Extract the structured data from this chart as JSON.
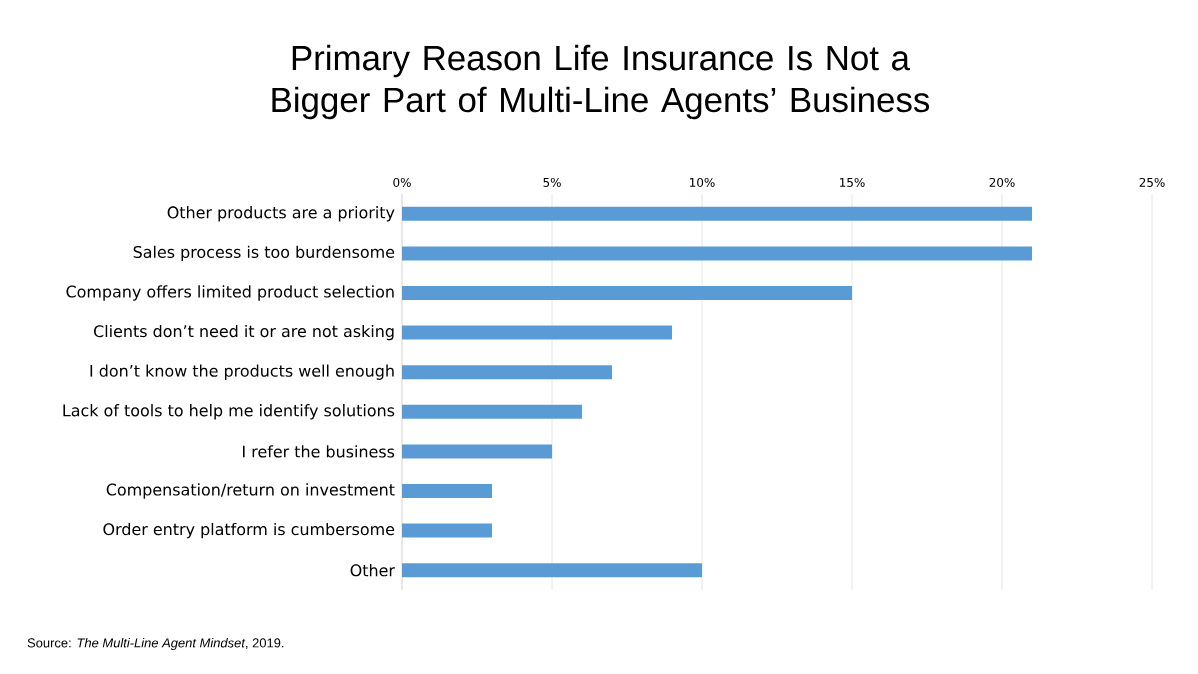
{
  "chart_data": {
    "type": "bar",
    "orientation": "horizontal",
    "title": "Primary Reason Life Insurance Is Not a Bigger Part of Multi-Line Agents’ Business",
    "categories": [
      "Other products are a priority",
      "Sales process is too burdensome",
      "Company offers limited product selection",
      "Clients don’t need it or are not asking",
      "I don’t know the products well enough",
      "Lack of tools to help me identify solutions",
      "I refer the business",
      "Compensation/return on investment",
      "Order entry platform is cumbersome",
      "Other"
    ],
    "values": [
      21,
      21,
      15,
      9,
      7,
      6,
      5,
      3,
      3,
      10
    ],
    "color": "#5b9bd5",
    "xlim": [
      0,
      25
    ],
    "xticks": [
      {
        "value": 0,
        "label": "0%"
      },
      {
        "value": 5,
        "label": "5%"
      },
      {
        "value": 10,
        "label": "10%"
      },
      {
        "value": 15,
        "label": "15%"
      },
      {
        "value": 20,
        "label": "20%"
      },
      {
        "value": 25,
        "label": "25%"
      }
    ],
    "grid": "x",
    "annotations": [
      "Source: *The Multi-Line Agent Mindset*, 2019."
    ]
  }
}
